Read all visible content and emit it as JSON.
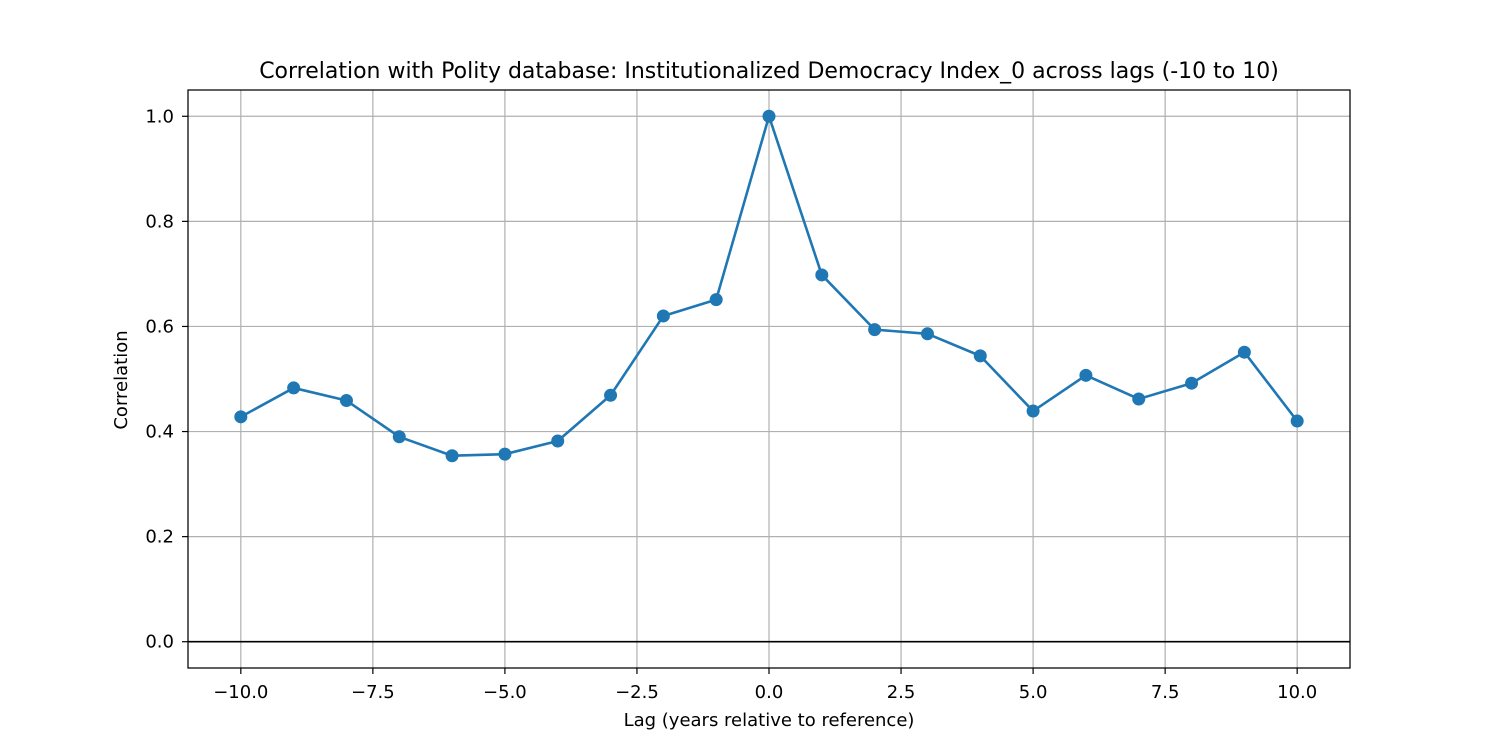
{
  "chart_data": {
    "type": "line",
    "title": "Correlation with Polity database: Institutionalized Democracy Index_0 across lags (-10 to 10)",
    "xlabel": "Lag (years relative to reference)",
    "ylabel": "Correlation",
    "xlim": [
      -11,
      11
    ],
    "ylim": [
      -0.05,
      1.05
    ],
    "x_ticks": [
      -10.0,
      -7.5,
      -5.0,
      -2.5,
      0.0,
      2.5,
      5.0,
      7.5,
      10.0
    ],
    "x_tick_labels": [
      "−10.0",
      "−7.5",
      "−5.0",
      "−2.5",
      "0.0",
      "2.5",
      "5.0",
      "7.5",
      "10.0"
    ],
    "y_ticks": [
      0.0,
      0.2,
      0.4,
      0.6,
      0.8,
      1.0
    ],
    "y_tick_labels": [
      "0.0",
      "0.2",
      "0.4",
      "0.6",
      "0.8",
      "1.0"
    ],
    "grid": true,
    "reference_line_y": 0.0,
    "series": [
      {
        "color": "#1f77b4",
        "marker": "circle",
        "x": [
          -10,
          -9,
          -8,
          -7,
          -6,
          -5,
          -4,
          -3,
          -2,
          -1,
          0,
          1,
          2,
          3,
          4,
          5,
          6,
          7,
          8,
          9,
          10
        ],
        "y": [
          0.428,
          0.483,
          0.459,
          0.39,
          0.354,
          0.357,
          0.382,
          0.469,
          0.62,
          0.651,
          1.0,
          0.698,
          0.594,
          0.586,
          0.544,
          0.439,
          0.507,
          0.462,
          0.492,
          0.551,
          0.42
        ]
      }
    ]
  }
}
